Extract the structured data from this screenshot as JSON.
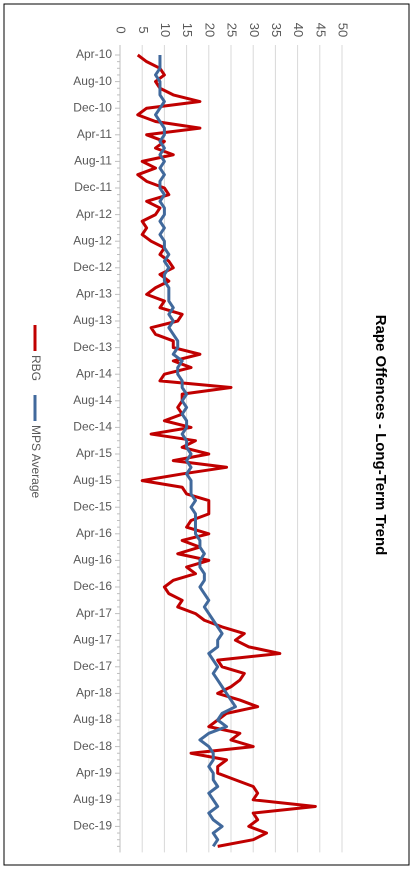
{
  "chart_data": {
    "type": "line",
    "title": "Rape Offences - Long-Term Trend",
    "categories": [
      "Apr-10",
      null,
      null,
      null,
      "Aug-10",
      null,
      null,
      null,
      "Dec-10",
      null,
      null,
      null,
      "Apr-11",
      null,
      null,
      null,
      "Aug-11",
      null,
      null,
      null,
      "Dec-11",
      null,
      null,
      null,
      "Apr-12",
      null,
      null,
      null,
      "Aug-12",
      null,
      null,
      null,
      "Dec-12",
      null,
      null,
      null,
      "Apr-13",
      null,
      null,
      null,
      "Aug-13",
      null,
      null,
      null,
      "Dec-13",
      null,
      null,
      null,
      "Apr-14",
      null,
      null,
      null,
      "Aug-14",
      null,
      null,
      null,
      "Dec-14",
      null,
      null,
      null,
      "Apr-15",
      null,
      null,
      null,
      "Aug-15",
      null,
      null,
      null,
      "Dec-15",
      null,
      null,
      null,
      "Apr-16",
      null,
      null,
      null,
      "Aug-16",
      null,
      null,
      null,
      "Dec-16",
      null,
      null,
      null,
      "Apr-17",
      null,
      null,
      null,
      "Aug-17",
      null,
      null,
      null,
      "Dec-17",
      null,
      null,
      null,
      "Apr-18",
      null,
      null,
      null,
      "Aug-18",
      null,
      null,
      null,
      "Dec-18",
      null,
      null,
      null,
      "Apr-19",
      null,
      null,
      null,
      "Aug-19",
      null,
      null,
      null,
      "Dec-19",
      null,
      null,
      null
    ],
    "series": [
      {
        "name": "RBG",
        "color": "#c00000",
        "values": [
          4,
          6,
          9,
          10,
          8,
          9,
          12,
          18,
          6,
          4,
          8,
          18,
          6,
          10,
          8,
          12,
          5,
          8,
          4,
          6,
          10,
          11,
          6,
          9,
          8,
          5,
          6,
          5,
          7,
          10,
          9,
          11,
          12,
          9,
          11,
          8,
          6,
          10,
          9,
          14,
          13,
          7,
          8,
          12,
          12,
          18,
          12,
          16,
          10,
          9,
          25,
          14,
          14,
          13,
          14,
          10,
          16,
          7,
          17,
          14,
          20,
          12,
          24,
          14,
          5,
          14,
          15,
          20,
          20,
          20,
          16,
          15,
          20,
          14,
          18,
          13,
          20,
          15,
          17,
          12,
          10,
          11,
          14,
          13,
          17,
          19,
          23,
          28,
          26,
          29,
          36,
          22,
          23,
          28,
          27,
          25,
          22,
          27,
          31,
          24,
          22,
          20,
          27,
          25,
          30,
          16,
          24,
          22,
          22,
          26,
          30,
          31,
          30,
          44,
          30,
          31,
          29,
          33,
          30,
          22
        ]
      },
      {
        "name": "MPS Average",
        "color": "#41699c",
        "values": [
          9,
          9,
          9,
          8,
          9,
          9,
          9,
          10,
          9,
          8,
          9,
          10,
          10,
          9,
          10,
          9,
          10,
          9,
          10,
          9,
          9,
          10,
          9,
          10,
          10,
          9,
          10,
          9,
          10,
          10,
          11,
          10,
          11,
          10,
          10,
          11,
          11,
          11,
          12,
          11,
          12,
          11,
          12,
          13,
          13,
          12,
          14,
          13,
          13,
          14,
          14,
          15,
          14,
          15,
          14,
          15,
          15,
          14,
          15,
          15,
          16,
          15,
          16,
          15,
          16,
          16,
          16,
          17,
          16,
          17,
          17,
          17,
          17,
          18,
          18,
          19,
          18,
          18,
          19,
          19,
          18,
          19,
          20,
          19,
          20,
          21,
          22,
          23,
          22,
          22,
          20,
          21,
          22,
          21,
          22,
          23,
          24,
          25,
          26,
          23,
          22,
          24,
          20,
          18,
          20,
          21,
          21,
          20,
          21,
          21,
          22,
          20,
          21,
          22,
          20,
          21,
          23,
          21,
          22,
          21
        ]
      }
    ],
    "ylim": [
      0,
      50
    ],
    "yticks": [
      0,
      5,
      10,
      15,
      20,
      25,
      30,
      35,
      40,
      45,
      50
    ],
    "grid": true
  }
}
